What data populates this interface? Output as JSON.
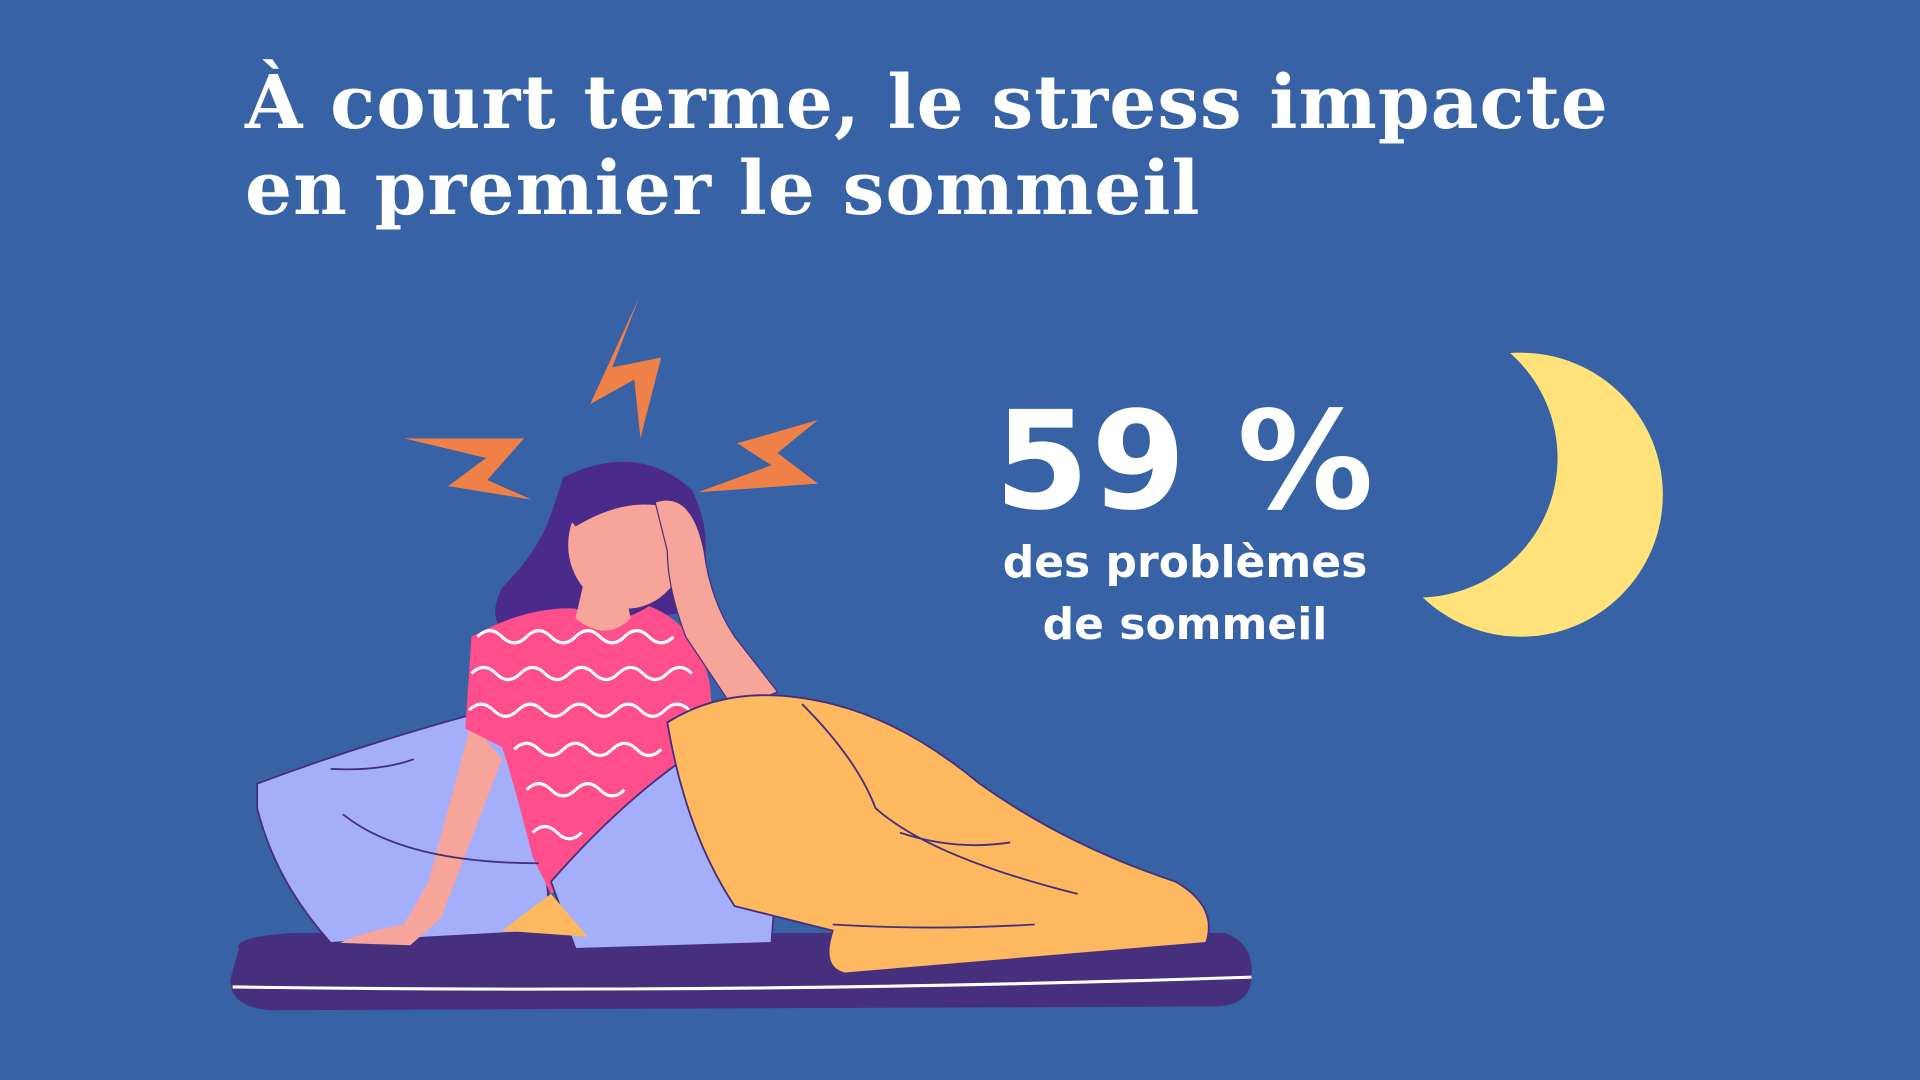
{
  "title": {
    "line1": "À court terme, le stress impacte",
    "line2": "en premier le sommeil"
  },
  "stat": {
    "value": "59 %",
    "label_line1": "des problèmes",
    "label_line2": "de sommeil"
  },
  "illustration": {
    "subject": "stressed-woman-in-bed",
    "icons": [
      "lightning-bolt-icon",
      "moon-icon"
    ]
  },
  "colors": {
    "background": "#3762A5",
    "moon": "#FFE27A",
    "bolt": "#EE8048",
    "shirt": "#FF4E8C",
    "blanket": "#FDB860",
    "pillow": "#A5AEFB",
    "mattress": "#46307E"
  }
}
